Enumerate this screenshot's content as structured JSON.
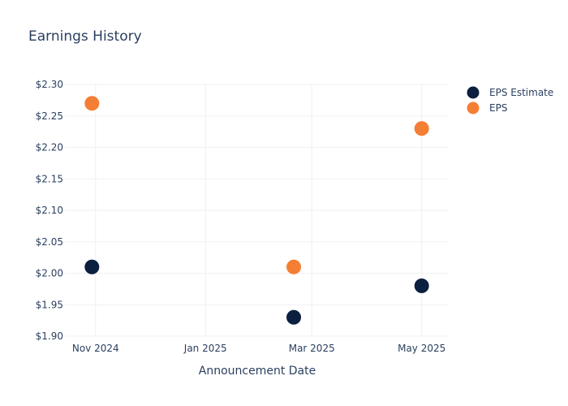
{
  "chart_data": {
    "type": "scatter",
    "title": "Earnings History",
    "xlabel": "Announcement Date",
    "ylabel": "",
    "x_ticks": [
      {
        "date": "2024-11-01",
        "label": "Nov 2024"
      },
      {
        "date": "2025-01-01",
        "label": "Jan 2025"
      },
      {
        "date": "2025-03-01",
        "label": "Mar 2025"
      },
      {
        "date": "2025-05-01",
        "label": "May 2025"
      }
    ],
    "xlim": [
      "2024-10-15",
      "2025-05-16"
    ],
    "ylim": [
      1.9,
      2.3
    ],
    "y_ticks": [
      {
        "value": 1.9,
        "label": "$1.90"
      },
      {
        "value": 1.95,
        "label": "$1.95"
      },
      {
        "value": 2.0,
        "label": "$2.00"
      },
      {
        "value": 2.05,
        "label": "$2.05"
      },
      {
        "value": 2.1,
        "label": "$2.10"
      },
      {
        "value": 2.15,
        "label": "$2.15"
      },
      {
        "value": 2.2,
        "label": "$2.20"
      },
      {
        "value": 2.25,
        "label": "$2.25"
      },
      {
        "value": 2.3,
        "label": "$2.30"
      }
    ],
    "grid": true,
    "legend_position": "top-right",
    "series": [
      {
        "name": "EPS Estimate",
        "color": "#0b1f3f",
        "points": [
          {
            "x": "2024-10-30",
            "y": 2.01
          },
          {
            "x": "2025-02-19",
            "y": 1.93
          },
          {
            "x": "2025-05-01",
            "y": 1.98
          }
        ]
      },
      {
        "name": "EPS",
        "color": "#f57e35",
        "points": [
          {
            "x": "2024-10-30",
            "y": 2.27
          },
          {
            "x": "2025-02-19",
            "y": 2.01
          },
          {
            "x": "2025-05-01",
            "y": 2.23
          }
        ]
      }
    ]
  }
}
